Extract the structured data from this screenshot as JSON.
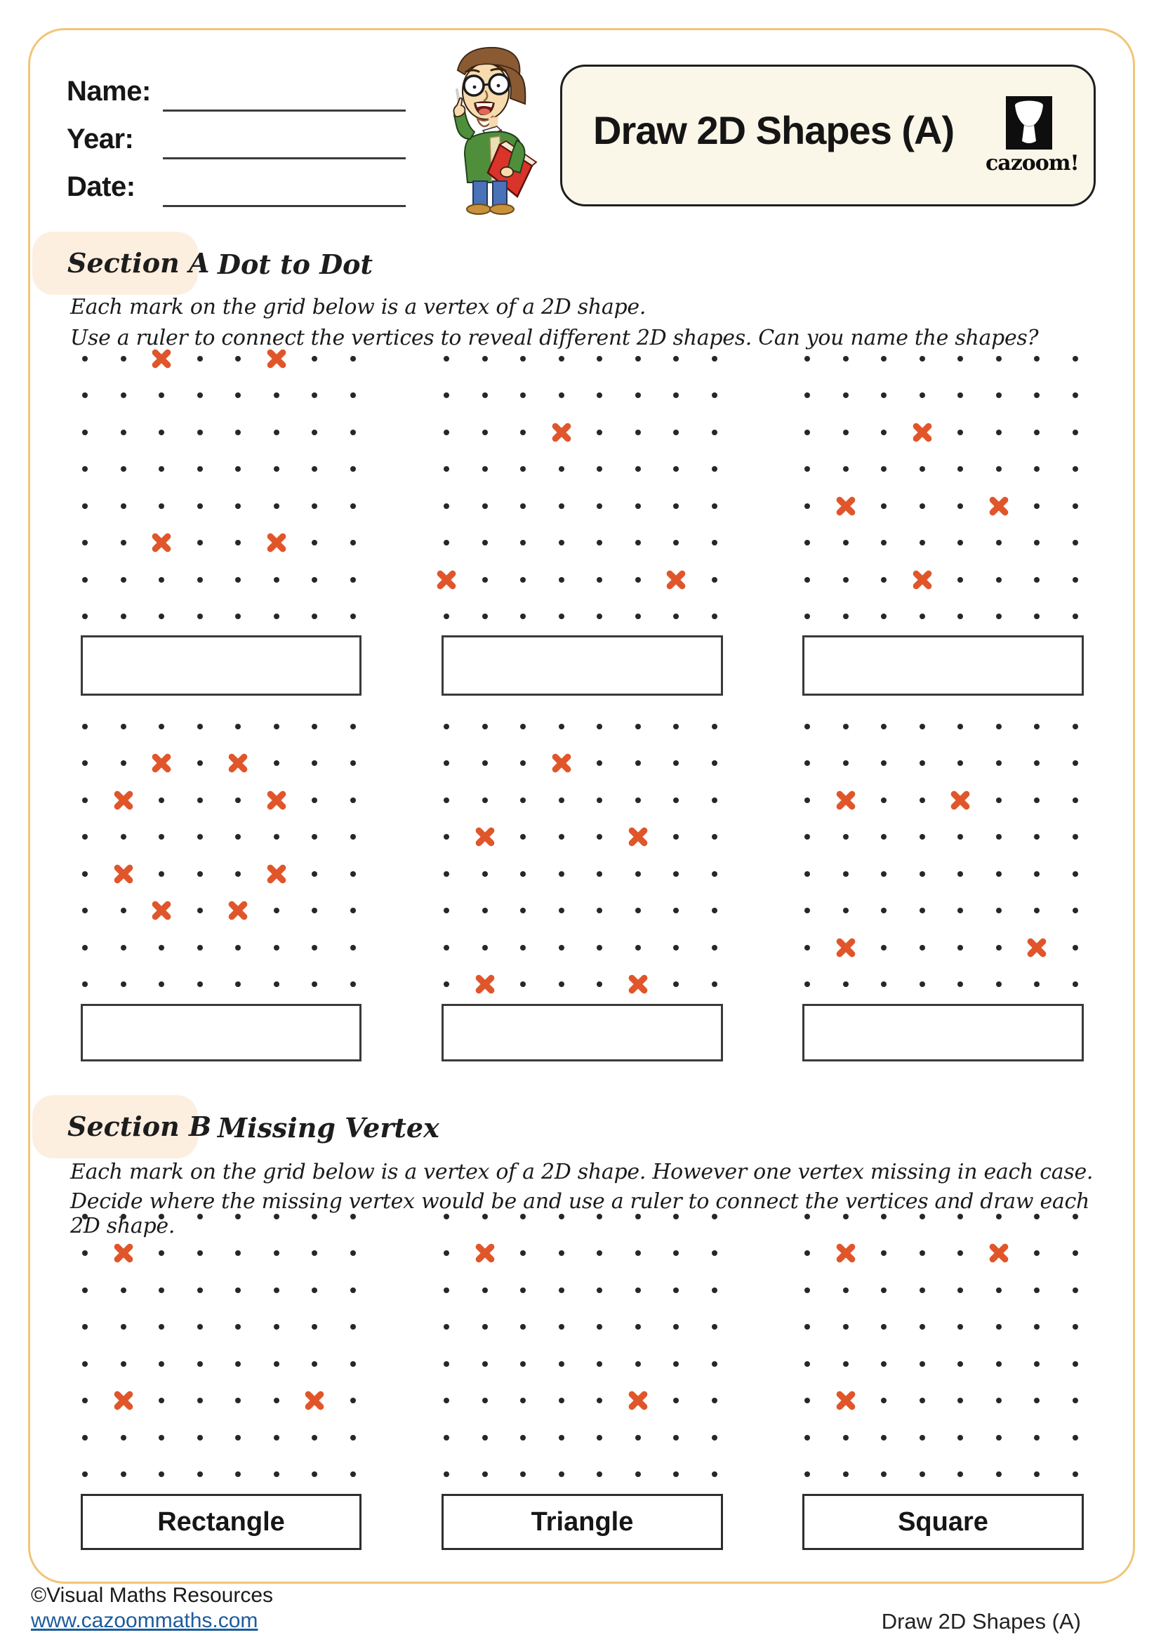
{
  "header": {
    "fields": [
      {
        "label": "Name:"
      },
      {
        "label": "Year:"
      },
      {
        "label": "Date:"
      }
    ],
    "title": "Draw 2D Shapes (A)",
    "logo_text": "cazoom!"
  },
  "section_a": {
    "label": "Section A",
    "heading": "Dot to Dot",
    "instructions": [
      "Each mark on the grid below is a vertex of a 2D shape.",
      "Use a ruler to connect the vertices to reveal different 2D shapes. Can you name the shapes?"
    ]
  },
  "section_b": {
    "label": "Section B",
    "heading": "Missing Vertex",
    "instructions": [
      "Each mark on the grid below is a vertex of a 2D shape. However one vertex missing in each case.",
      "Decide where the missing vertex would be and use a ruler to connect the vertices and draw each 2D shape."
    ]
  },
  "grids": {
    "a1": {
      "rows": 8,
      "cols": 8,
      "marks": [
        [
          2,
          0
        ],
        [
          5,
          0
        ],
        [
          2,
          5
        ],
        [
          5,
          5
        ]
      ]
    },
    "a2": {
      "rows": 8,
      "cols": 8,
      "marks": [
        [
          3,
          2
        ],
        [
          0,
          6
        ],
        [
          6,
          6
        ]
      ]
    },
    "a3": {
      "rows": 8,
      "cols": 8,
      "marks": [
        [
          3,
          2
        ],
        [
          1,
          4
        ],
        [
          5,
          4
        ],
        [
          3,
          6
        ]
      ]
    },
    "a4": {
      "rows": 8,
      "cols": 8,
      "marks": [
        [
          2,
          1
        ],
        [
          4,
          1
        ],
        [
          1,
          2
        ],
        [
          5,
          2
        ],
        [
          1,
          4
        ],
        [
          5,
          4
        ],
        [
          2,
          5
        ],
        [
          4,
          5
        ]
      ]
    },
    "a5": {
      "rows": 8,
      "cols": 8,
      "marks": [
        [
          3,
          1
        ],
        [
          1,
          3
        ],
        [
          5,
          3
        ],
        [
          1,
          7
        ],
        [
          5,
          7
        ]
      ]
    },
    "a6": {
      "rows": 8,
      "cols": 8,
      "marks": [
        [
          1,
          2
        ],
        [
          4,
          2
        ],
        [
          1,
          6
        ],
        [
          6,
          6
        ]
      ]
    },
    "b1": {
      "rows": 8,
      "cols": 8,
      "marks": [
        [
          1,
          1
        ],
        [
          1,
          5
        ],
        [
          6,
          5
        ]
      ],
      "label": "Rectangle"
    },
    "b2": {
      "rows": 8,
      "cols": 8,
      "marks": [
        [
          1,
          1
        ],
        [
          5,
          5
        ]
      ],
      "label": "Triangle"
    },
    "b3": {
      "rows": 8,
      "cols": 8,
      "marks": [
        [
          1,
          1
        ],
        [
          5,
          1
        ],
        [
          1,
          5
        ]
      ],
      "label": "Square"
    }
  },
  "footer": {
    "copyright": "©Visual Maths Resources",
    "link": "www.cazoommaths.com",
    "doc_title": "Draw 2D Shapes (A)"
  },
  "colors": {
    "x_mark": "#E0562A",
    "dot": "#272727",
    "frame_border": "#F2C577",
    "section_pill": "#FCEFE0",
    "panel_cream": "#FAF6E8",
    "link": "#1C5C9C"
  }
}
